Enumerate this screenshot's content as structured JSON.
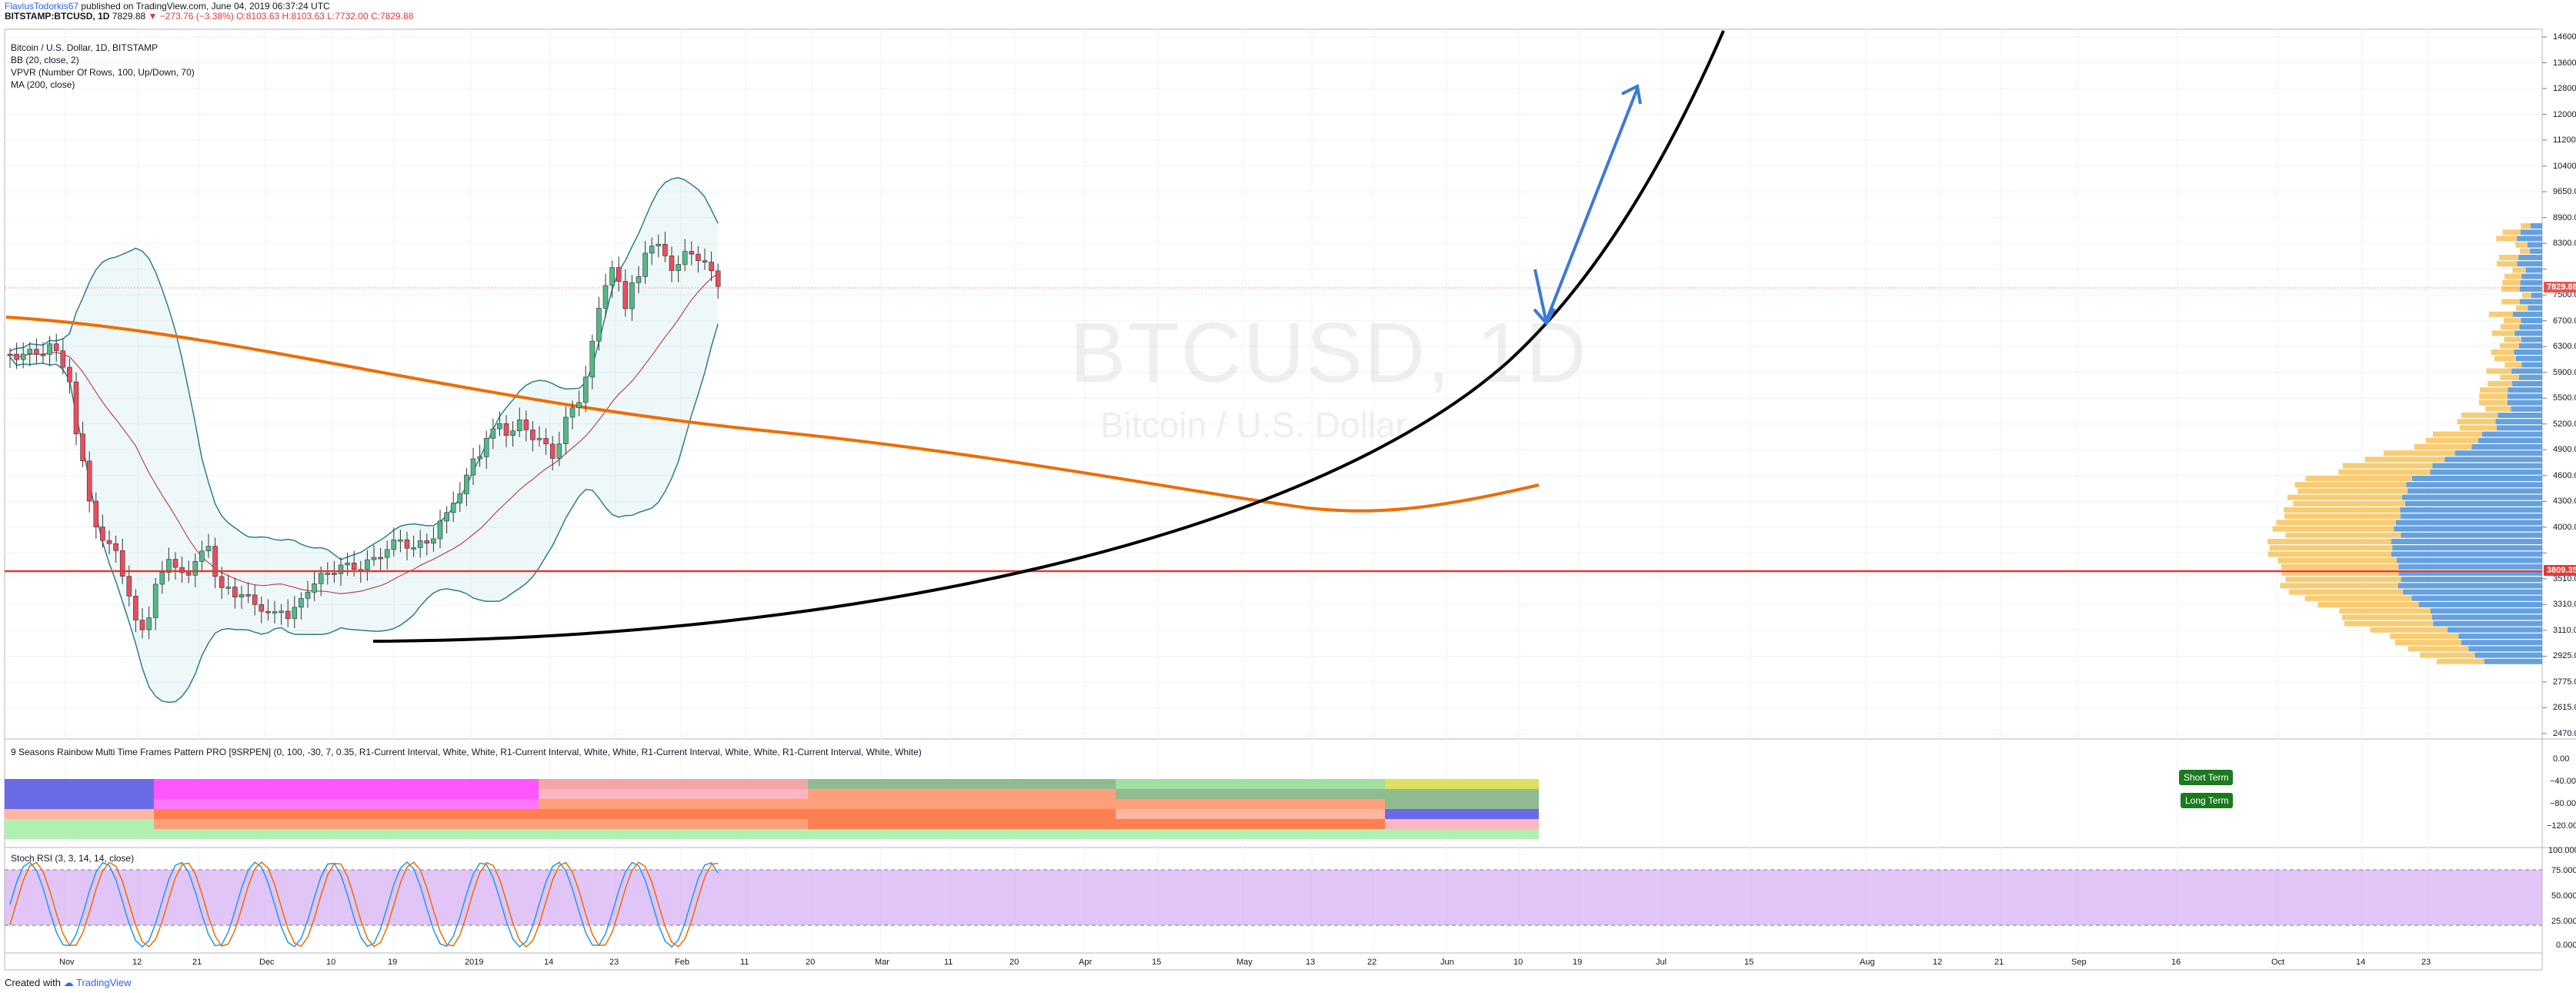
{
  "header": {
    "author": "FlaviusTodorkis67",
    "published": "published on TradingView.com, June 04, 2019 06:37:24 UTC",
    "symbol": "BITSTAMP:BTCUSD, 1D",
    "last": "7829.88",
    "change": "▼ −273.76 (−3.38%)",
    "ohlc": "O:8103.63 H:8103.63 L:7732.00 C:7829.88"
  },
  "main_legend": {
    "title": "Bitcoin / U.S. Dollar, 1D, BITSTAMP",
    "bb": "BB (20, close, 2)",
    "vpvr": "VPVR (Number Of Rows, 100, Up/Down, 70)",
    "ma": "MA (200, close)"
  },
  "watermark": {
    "symbol": "BTCUSD, 1D",
    "name": "Bitcoin / U.S. Dollar"
  },
  "price_axis": [
    "14600.00",
    "13600.00",
    "12800.00",
    "12000.00",
    "11200.00",
    "10400.00",
    "9650.00",
    "8900.00",
    "8300.00",
    "7829.88",
    "7500.00",
    "6700.00",
    "6300.00",
    "5900.00",
    "5500.00",
    "5200.00",
    "4900.00",
    "4600.00",
    "4300.00",
    "4000.00",
    "3809.35",
    "3510.00",
    "3310.00",
    "3110.00",
    "2925.00",
    "2775.00",
    "2615.00",
    "2470.00"
  ],
  "price_tags": {
    "last": "7829.88",
    "line": "3809.35"
  },
  "rainbow": {
    "label": "9 Seasons Rainbow Multi Time Frames Pattern PRO [9SRPEN] (0, 100, -30, 7, 0.35, R1-Current Interval, White, White, R1-Current Interval, White, White, R1-Current Interval, White, White, R1-Current Interval, White, White)",
    "axis": [
      "0.00",
      "−40.00",
      "−80.00",
      "−120.00"
    ],
    "short_term": "Short Term",
    "long_term": "Long Term"
  },
  "stoch": {
    "label": "Stoch RSI (3, 3, 14, 14, close)",
    "axis": [
      "100.0000",
      "75.0000",
      "50.0000",
      "25.0000",
      "0.0000"
    ]
  },
  "time_axis": [
    "Nov",
    "12",
    "21",
    "Dec",
    "10",
    "19",
    "2019",
    "14",
    "23",
    "Feb",
    "11",
    "20",
    "Mar",
    "11",
    "20",
    "Apr",
    "15",
    "May",
    "13",
    "22",
    "Jun",
    "10",
    "19",
    "Jul",
    "15",
    "Aug",
    "12",
    "21",
    "Sep",
    "16",
    "Oct",
    "14",
    "23"
  ],
  "footer": {
    "created": "Created with",
    "brand": "TradingView"
  },
  "colors": {
    "up": "#26a69a",
    "down": "#ef5350",
    "candle_up": "#53b987",
    "candle_down": "#eb4d5c",
    "ma": "#ef6c00",
    "bb": "#2d7d8c",
    "arrow": "#3a7bd5",
    "support": "#e53935",
    "vp_up": "#4a90d9",
    "vp_down": "#f7c35a"
  }
}
